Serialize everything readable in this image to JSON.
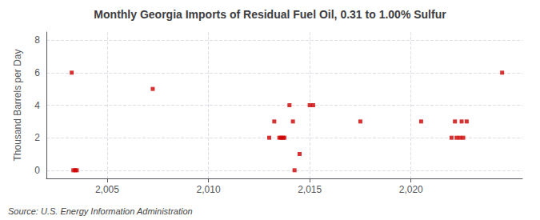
{
  "chart_data": {
    "type": "scatter",
    "title": "Monthly Georgia Imports of Residual Fuel Oil, 0.31 to 1.00% Sulfur",
    "ylabel": "Thousand Barrels per Day",
    "annotation": "Source: U.S. Energy Information Administration",
    "color": "#cc0000",
    "marker": "square",
    "grid": true,
    "xlim": [
      2002.0,
      2025.5
    ],
    "ylim": [
      -0.5,
      8.5
    ],
    "xticks": [
      2005,
      2010,
      2015,
      2020
    ],
    "yticks": [
      0,
      2,
      4,
      6,
      8
    ],
    "x": [
      2003.25,
      2003.33,
      2003.42,
      2003.5,
      2007.25,
      2013.0,
      2013.25,
      2013.5,
      2013.58,
      2013.67,
      2013.75,
      2014.0,
      2014.17,
      2014.25,
      2014.5,
      2015.0,
      2015.17,
      2017.5,
      2020.5,
      2022.17,
      2022.5,
      2022.75,
      2022.0,
      2022.25,
      2022.42,
      2022.58,
      2024.5
    ],
    "values": [
      6.0,
      0.0,
      0.0,
      0.0,
      5.0,
      2.0,
      3.0,
      2.0,
      2.0,
      2.0,
      2.0,
      4.0,
      3.0,
      0.0,
      1.0,
      4.0,
      4.0,
      3.0,
      3.0,
      3.0,
      3.0,
      3.0,
      2.0,
      2.0,
      2.0,
      2.0,
      6.0
    ]
  }
}
